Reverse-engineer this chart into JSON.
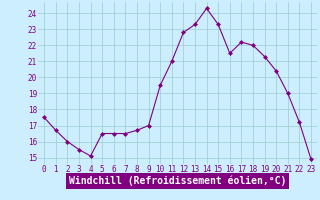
{
  "x": [
    0,
    1,
    2,
    3,
    4,
    5,
    6,
    7,
    8,
    9,
    10,
    11,
    12,
    13,
    14,
    15,
    16,
    17,
    18,
    19,
    20,
    21,
    22,
    23
  ],
  "y": [
    17.5,
    16.7,
    16.0,
    15.5,
    15.1,
    16.5,
    16.5,
    16.5,
    16.7,
    17.0,
    19.5,
    21.0,
    22.8,
    23.3,
    24.3,
    23.3,
    21.5,
    22.2,
    22.0,
    21.3,
    20.4,
    19.0,
    17.2,
    14.9
  ],
  "line_color": "#800080",
  "marker": "D",
  "marker_size": 2.0,
  "bg_color": "#cceeff",
  "grid_color": "#99cccc",
  "xlabel": "Windchill (Refroidissement éolien,°C)",
  "xlabel_color": "#ffffff",
  "xlabel_bg": "#800080",
  "ylabel_ticks": [
    15,
    16,
    17,
    18,
    19,
    20,
    21,
    22,
    23,
    24
  ],
  "ylim": [
    14.6,
    24.7
  ],
  "xlim": [
    -0.5,
    23.5
  ],
  "tick_color": "#800080",
  "tick_fontsize": 5.5,
  "xlabel_fontsize": 7.0,
  "fig_width": 3.2,
  "fig_height": 2.0,
  "dpi": 100
}
